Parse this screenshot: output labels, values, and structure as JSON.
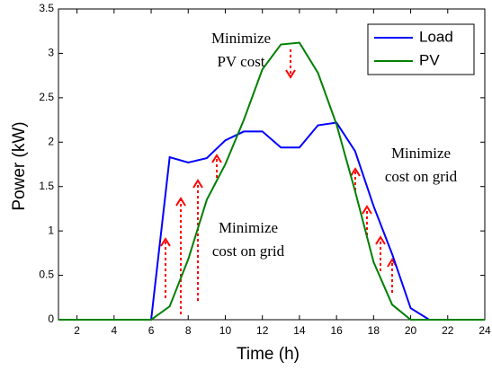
{
  "chart_data": {
    "type": "line",
    "xlabel": "Time (h)",
    "ylabel": "Power (kW)",
    "x": [
      1,
      2,
      3,
      4,
      5,
      6,
      7,
      8,
      9,
      10,
      11,
      12,
      13,
      14,
      15,
      16,
      17,
      18,
      19,
      20,
      21,
      22,
      23,
      24
    ],
    "series": [
      {
        "name": "Load",
        "color": "#0000ff",
        "values": [
          0,
          0,
          0,
          0,
          0,
          0,
          1.83,
          1.77,
          1.82,
          2.02,
          2.12,
          2.12,
          1.94,
          1.94,
          2.19,
          2.22,
          1.9,
          1.28,
          0.74,
          0.13,
          0,
          0,
          0,
          0
        ]
      },
      {
        "name": "PV",
        "color": "#008000",
        "values": [
          0,
          0,
          0,
          0,
          0,
          0,
          0.15,
          0.68,
          1.35,
          1.75,
          2.25,
          2.82,
          3.1,
          3.12,
          2.78,
          2.2,
          1.45,
          0.65,
          0.17,
          0,
          0,
          0,
          0,
          0
        ]
      }
    ],
    "xlim": [
      1,
      24
    ],
    "xticks": [
      2,
      4,
      6,
      8,
      10,
      12,
      14,
      16,
      18,
      20,
      22,
      24
    ],
    "ylim": [
      0,
      3.5
    ],
    "yticks": [
      0,
      0.5,
      1,
      1.5,
      2,
      2.5,
      3,
      3.5
    ],
    "legend": "upper right",
    "annotations": [
      {
        "lines": [
          "Minimize",
          "PV cost"
        ]
      },
      {
        "lines": [
          "Minimize",
          "cost on grid"
        ]
      },
      {
        "lines": [
          "Minimize",
          "cost on grid"
        ]
      }
    ]
  }
}
